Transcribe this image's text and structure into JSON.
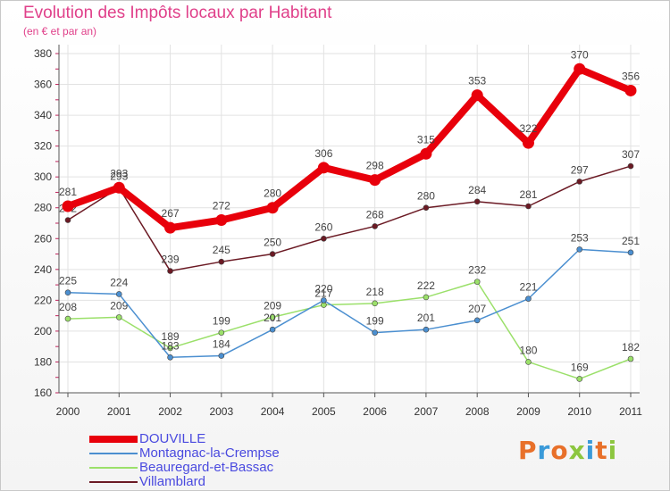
{
  "header": {
    "title": "Evolution des Impôts locaux par Habitant",
    "subtitle": "(en € et par an)"
  },
  "logo_text": "Proxiti",
  "logo_colors": [
    "#e8702a",
    "#3a9ad9",
    "#e8702a",
    "#8cc63f",
    "#3a9ad9",
    "#e8702a",
    "#8cc63f"
  ],
  "chart_data": {
    "type": "line",
    "title": "Evolution des Impôts locaux par Habitant",
    "subtitle": "(en € et par an)",
    "xlabel": "",
    "ylabel": "",
    "ylim": [
      160,
      380
    ],
    "yticks": [
      160,
      180,
      200,
      220,
      240,
      260,
      280,
      300,
      320,
      340,
      360,
      380
    ],
    "grid": true,
    "legend_position": "bottom-left",
    "categories": [
      "2000",
      "2001",
      "2002",
      "2003",
      "2004",
      "2005",
      "2006",
      "2007",
      "2008",
      "2009",
      "2010",
      "2011"
    ],
    "series": [
      {
        "name": "DOUVILLE",
        "color": "#e8000b",
        "values": [
          281,
          293,
          267,
          272,
          280,
          306,
          298,
          315,
          353,
          322,
          370,
          356
        ]
      },
      {
        "name": "Montagnac-la-Crempse",
        "color": "#4b8fd0",
        "values": [
          225,
          224,
          183,
          184,
          201,
          220,
          199,
          201,
          207,
          221,
          253,
          251
        ]
      },
      {
        "name": "Beauregard-et-Bassac",
        "color": "#9be06a",
        "values": [
          208,
          209,
          189,
          199,
          209,
          217,
          218,
          222,
          232,
          180,
          169,
          182
        ]
      },
      {
        "name": "Villamblard",
        "color": "#6b1a24",
        "values": [
          272,
          293,
          239,
          245,
          250,
          260,
          268,
          280,
          284,
          281,
          297,
          307
        ]
      }
    ]
  }
}
